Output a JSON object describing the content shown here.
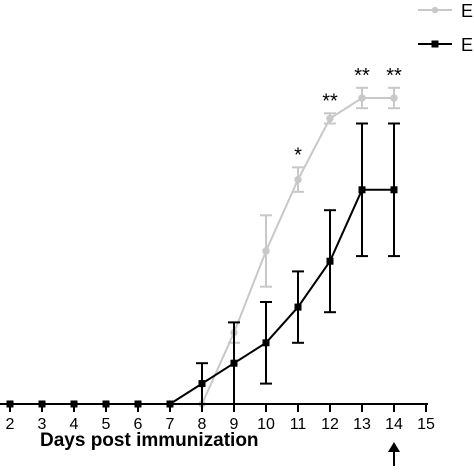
{
  "chart_data": {
    "type": "line",
    "xlabel": "Days post immunization",
    "x": [
      2,
      3,
      4,
      5,
      6,
      7,
      8,
      9,
      10,
      11,
      12,
      13,
      14
    ],
    "x_ticks": [
      2,
      3,
      4,
      5,
      6,
      7,
      8,
      9,
      10,
      11,
      12,
      13,
      14,
      15
    ],
    "xlim": [
      1.75,
      15
    ],
    "ylim": [
      0,
      3.2
    ],
    "y_visible_range": [
      0,
      3.2
    ],
    "legend_position": "top-right",
    "series": [
      {
        "name": "E",
        "color": "#c8c8c8",
        "marker": "circle",
        "values": [
          0,
          0,
          0,
          0,
          0,
          0,
          0,
          0.7,
          1.5,
          2.2,
          2.8,
          3.0,
          3.0
        ],
        "errors": [
          0,
          0,
          0,
          0,
          0,
          0,
          0,
          0.1,
          0.35,
          0.12,
          0.05,
          0.1,
          0.1
        ]
      },
      {
        "name": "E",
        "color": "#000000",
        "marker": "square",
        "values": [
          0,
          0,
          0,
          0,
          0,
          0,
          0.2,
          0.4,
          0.6,
          0.95,
          1.4,
          2.1,
          2.1
        ],
        "errors": [
          0,
          0,
          0,
          0,
          0,
          0,
          0.2,
          0.4,
          0.4,
          0.35,
          0.5,
          0.65,
          0.65
        ]
      }
    ],
    "annotations": [
      {
        "x": 11,
        "text": "*"
      },
      {
        "x": 12,
        "text": "**"
      },
      {
        "x": 13,
        "text": "**"
      },
      {
        "x": 14,
        "text": "**"
      }
    ],
    "arrow_at_x": 14
  }
}
